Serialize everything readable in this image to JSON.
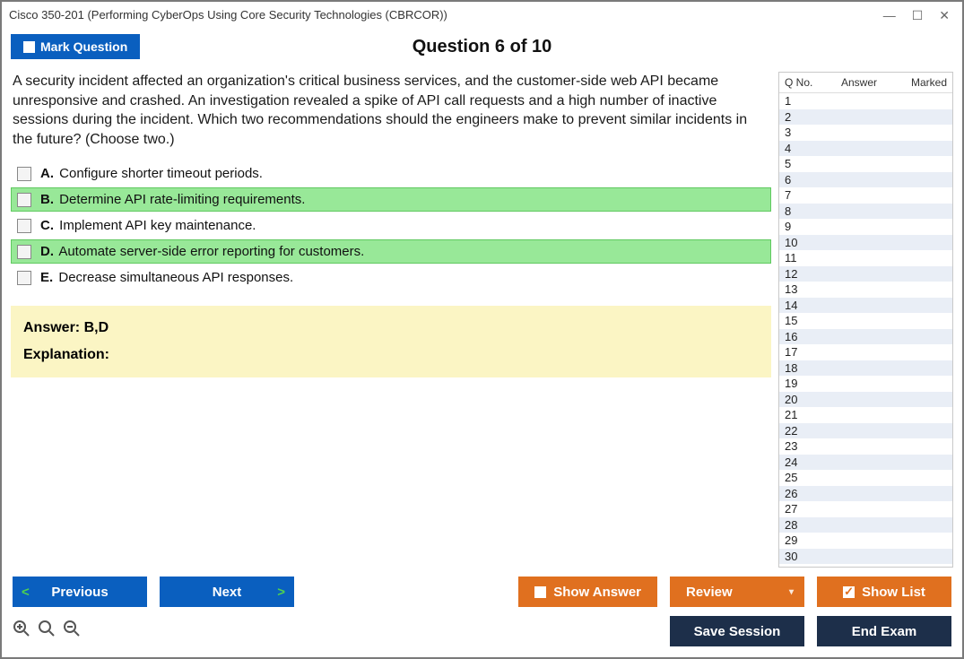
{
  "window": {
    "title": "Cisco 350-201 (Performing CyberOps Using Core Security Technologies (CBRCOR))"
  },
  "colors": {
    "primary_blue": "#0a5fbf",
    "accent_orange": "#e0701f",
    "navy": "#1d2f4a",
    "highlight_green": "#98e898",
    "answer_bg": "#fbf5c4",
    "row_alt": "#e9eef6",
    "border_gray": "#c9c9c9"
  },
  "header": {
    "mark_label": "Mark Question",
    "counter": "Question 6 of 10"
  },
  "question": {
    "text": "A security incident affected an organization's critical business services, and the customer-side web API became unresponsive and crashed. An investigation revealed a spike of API call requests and a high number of inactive sessions during the incident. Which two recommendations should the engineers make to prevent similar incidents in the future? (Choose two.)",
    "choices": [
      {
        "letter": "A.",
        "text": "Configure shorter timeout periods.",
        "highlighted": false
      },
      {
        "letter": "B.",
        "text": "Determine API rate-limiting requirements.",
        "highlighted": true
      },
      {
        "letter": "C.",
        "text": "Implement API key maintenance.",
        "highlighted": false
      },
      {
        "letter": "D.",
        "text": "Automate server-side error reporting for customers.",
        "highlighted": true
      },
      {
        "letter": "E.",
        "text": "Decrease simultaneous API responses.",
        "highlighted": false
      }
    ]
  },
  "answer_panel": {
    "answer_label": "Answer: B,D",
    "explanation_label": "Explanation:"
  },
  "side": {
    "col_qno": "Q No.",
    "col_answer": "Answer",
    "col_marked": "Marked",
    "row_count": 30
  },
  "buttons": {
    "previous": "Previous",
    "next": "Next",
    "show_answer": "Show Answer",
    "review": "Review",
    "show_list": "Show List",
    "save_session": "Save Session",
    "end_exam": "End Exam"
  }
}
